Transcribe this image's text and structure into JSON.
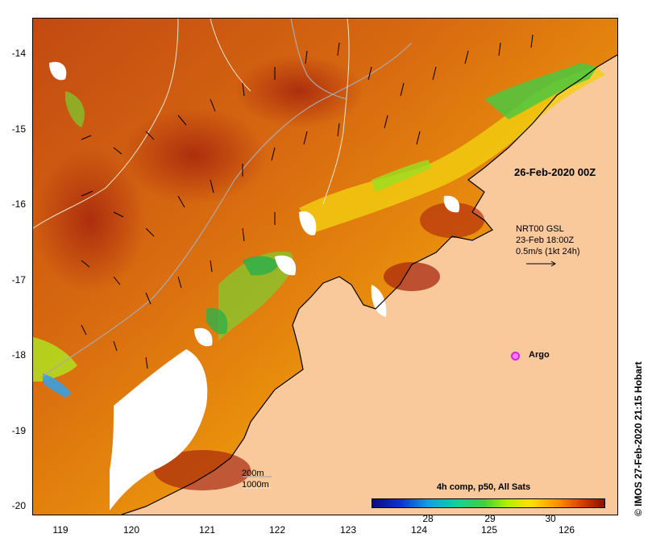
{
  "map": {
    "y_axis_labels": [
      "-14",
      "-15",
      "-16",
      "-17",
      "-18",
      "-19",
      "-20"
    ],
    "x_axis_labels": [
      "119",
      "120",
      "121",
      "122",
      "123",
      "124",
      "125",
      "126"
    ],
    "date_label": "26-Feb-2020 00Z",
    "current_legend": {
      "line1": "NRT00 GSL",
      "line2": "23-Feb 18:00Z",
      "line3": "0.5m/s (1kt 24h)"
    },
    "argo_label": "Argo",
    "colorbar_title": "4h comp, p50, All Sats",
    "colorbar_ticks": [
      "28",
      "29",
      "30"
    ],
    "depth_labels": [
      "200m",
      "1000m"
    ],
    "credit": "© IMOS 27-Feb-2020 21:15 Hobart",
    "colors": {
      "land": "#f9c89b",
      "cloud": "#ffffff",
      "argo": "#e020e0"
    }
  }
}
